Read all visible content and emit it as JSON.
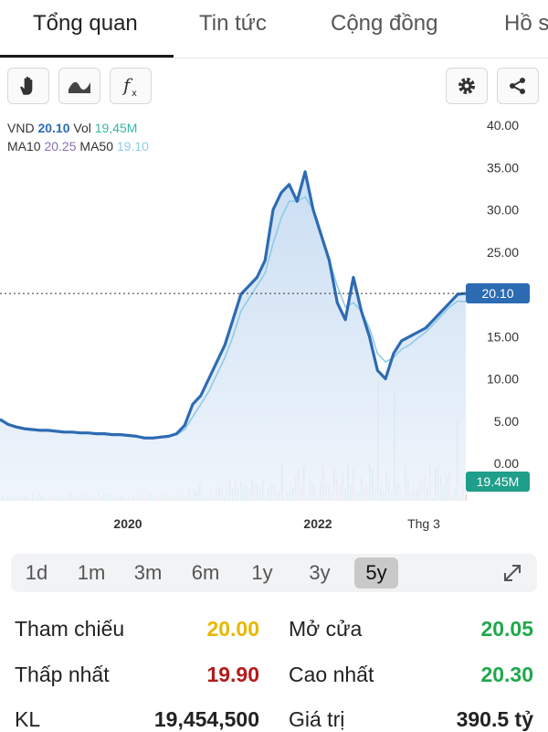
{
  "tabs": [
    {
      "label": "Tổng quan"
    },
    {
      "label": "Tin tức"
    },
    {
      "label": "Cộng đồng"
    },
    {
      "label": "Hồ s"
    }
  ],
  "legend": {
    "ticker": "VND",
    "price": "20.10",
    "vol_label": "Vol",
    "vol": "19,45M",
    "ma10_label": "MA10",
    "ma10": "20.25",
    "ma50_label": "MA50",
    "ma50": "19.10"
  },
  "price_tag": "20.10",
  "volume_tag": "19.45M",
  "colors": {
    "price_line": "#2d6bb3",
    "ma_line": "#8fcbe6",
    "area": "#d6e6f5",
    "volume_up": "#3cb4a0",
    "volume_down": "#e08a8a",
    "ref_yellow": "#e6b800",
    "down_red": "#b31b1b",
    "up_green": "#1fa84a"
  },
  "chart_data": {
    "type": "line",
    "y_ticks": [
      "40.00",
      "35.00",
      "30.00",
      "25.00",
      "20.00",
      "15.00",
      "10.00",
      "5.00",
      "0.00"
    ],
    "x_ticks": [
      "2020",
      "2022",
      "Thg 3"
    ],
    "ylim": [
      0,
      40
    ],
    "series": [
      {
        "values": [
          5.2,
          4.6,
          4.3,
          4.1,
          4.0,
          3.9,
          3.9,
          3.8,
          3.7,
          3.7,
          3.6,
          3.6,
          3.5,
          3.5,
          3.4,
          3.4,
          3.3,
          3.2,
          3.0,
          3.0,
          3.1,
          3.2,
          3.5,
          4.5,
          7.0,
          8.0,
          10.0,
          12.0,
          14.0,
          17.0,
          20.0,
          21.0,
          22.0,
          24.0,
          30.0,
          32.0,
          33.0,
          31.0,
          34.5,
          30.0,
          27.0,
          24.0,
          19.0,
          17.0,
          22.0,
          18.0,
          15.0,
          11.0,
          10.0,
          13.0,
          14.5,
          15.0,
          15.5,
          16.0,
          17.0,
          18.0,
          19.0,
          20.0,
          20.1
        ]
      },
      {
        "values": [
          5.0,
          4.7,
          4.4,
          4.2,
          4.0,
          3.9,
          3.9,
          3.8,
          3.7,
          3.7,
          3.6,
          3.6,
          3.5,
          3.5,
          3.4,
          3.4,
          3.3,
          3.2,
          3.1,
          3.0,
          3.1,
          3.2,
          3.4,
          4.0,
          5.5,
          7.0,
          8.5,
          10.5,
          12.5,
          15.0,
          18.0,
          19.5,
          21.0,
          22.5,
          26.0,
          29.0,
          31.0,
          31.0,
          31.5,
          30.0,
          27.0,
          24.0,
          21.0,
          18.5,
          19.0,
          18.0,
          16.0,
          13.0,
          12.0,
          12.5,
          13.5,
          14.0,
          14.8,
          15.5,
          16.5,
          17.5,
          18.5,
          19.2,
          19.1
        ]
      }
    ],
    "price_line": 20.1
  },
  "ranges": {
    "items": [
      {
        "label": "1d"
      },
      {
        "label": "1m"
      },
      {
        "label": "3m"
      },
      {
        "label": "6m"
      },
      {
        "label": "1y"
      },
      {
        "label": "3y"
      },
      {
        "label": "5y"
      }
    ],
    "active_index": 6
  },
  "stats": {
    "tham_chieu_label": "Tham chiếu",
    "tham_chieu": "20.00",
    "mo_cua_label": "Mở cửa",
    "mo_cua": "20.05",
    "thap_nhat_label": "Thấp nhất",
    "thap_nhat": "19.90",
    "cao_nhat_label": "Cao nhất",
    "cao_nhat": "20.30",
    "kl_label": "KL",
    "kl": "19,454,500",
    "gia_tri_label": "Giá trị",
    "gia_tri": "390.5 tỷ"
  }
}
